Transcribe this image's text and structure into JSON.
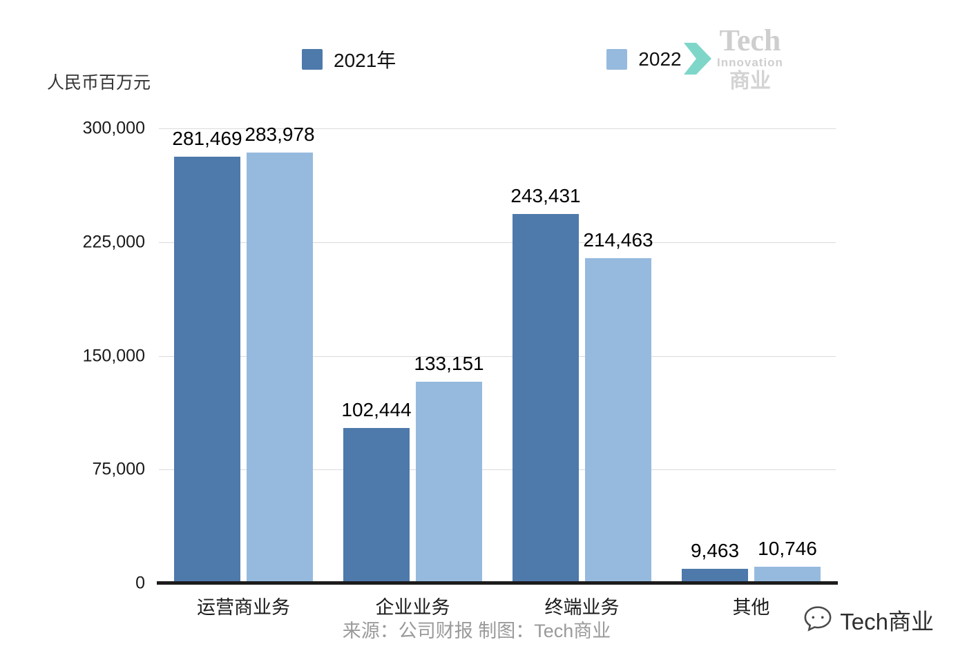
{
  "unit_label": "人民币百万元",
  "legend": {
    "items": [
      {
        "label": "2021年",
        "color": "#4e79ab"
      },
      {
        "label": "2022",
        "color": "#96bade"
      }
    ]
  },
  "logo": {
    "name": "Tech",
    "subtitle": "Innovation",
    "cn": "商业",
    "arrow_color": "#4cc7b4"
  },
  "chart_data": {
    "type": "bar",
    "title": "",
    "ylabel": "人民币百万元",
    "categories": [
      "运营商业务",
      "企业业务",
      "终端业务",
      "其他"
    ],
    "series": [
      {
        "name": "2021年",
        "color": "#4e79ab",
        "values": [
          281469,
          102444,
          243431,
          9463
        ],
        "labels": [
          "281,469",
          "102,444",
          "243,431",
          "9,463"
        ]
      },
      {
        "name": "2022",
        "color": "#96bade",
        "values": [
          283978,
          133151,
          214463,
          10746
        ],
        "labels": [
          "283,978",
          "133,151",
          "214,463",
          "10,746"
        ]
      }
    ],
    "ylim": [
      0,
      300000
    ],
    "yticks": [
      0,
      75000,
      150000,
      225000,
      300000
    ],
    "ytick_labels": [
      "0",
      "75,000",
      "150,000",
      "225,000",
      "300,000"
    ],
    "grid": true,
    "legend_position": "top"
  },
  "footer": {
    "source": "来源：公司财报 制图：Tech商业",
    "watermark": "Tech商业"
  }
}
